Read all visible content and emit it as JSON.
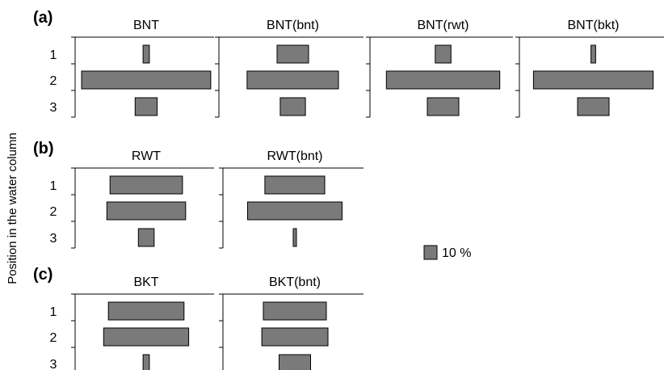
{
  "ylabel": "Position in the water column",
  "scale_legend": {
    "label": "10 %",
    "value": 10
  },
  "chart_data": [
    {
      "panel": "(a)",
      "title": "BNT",
      "type": "bar",
      "orientation": "kite",
      "categories": [
        "1",
        "2",
        "3"
      ],
      "values": [
        2,
        41,
        7
      ]
    },
    {
      "panel": "",
      "title": "BNT(bnt)",
      "type": "bar",
      "orientation": "kite",
      "categories": [
        "1",
        "2",
        "3"
      ],
      "values": [
        10,
        29,
        8
      ]
    },
    {
      "panel": "",
      "title": "BNT(rwt)",
      "type": "bar",
      "orientation": "kite",
      "categories": [
        "1",
        "2",
        "3"
      ],
      "values": [
        5,
        36,
        10
      ]
    },
    {
      "panel": "",
      "title": "BNT(bkt)",
      "type": "bar",
      "orientation": "kite",
      "categories": [
        "1",
        "2",
        "3"
      ],
      "values": [
        1.5,
        38,
        10
      ]
    },
    {
      "panel": "(b)",
      "title": "RWT",
      "type": "bar",
      "orientation": "kite",
      "categories": [
        "1",
        "2",
        "3"
      ],
      "values": [
        23,
        25,
        5
      ]
    },
    {
      "panel": "",
      "title": "RWT(bnt)",
      "type": "bar",
      "orientation": "kite",
      "categories": [
        "1",
        "2",
        "3"
      ],
      "values": [
        19,
        30,
        0.7
      ]
    },
    {
      "panel": "(c)",
      "title": "BKT",
      "type": "bar",
      "orientation": "kite",
      "categories": [
        "1",
        "2",
        "3"
      ],
      "values": [
        24,
        27,
        2
      ]
    },
    {
      "panel": "",
      "title": "BKT(bnt)",
      "type": "bar",
      "orientation": "kite",
      "categories": [
        "1",
        "2",
        "3"
      ],
      "values": [
        20,
        21,
        10
      ]
    }
  ]
}
